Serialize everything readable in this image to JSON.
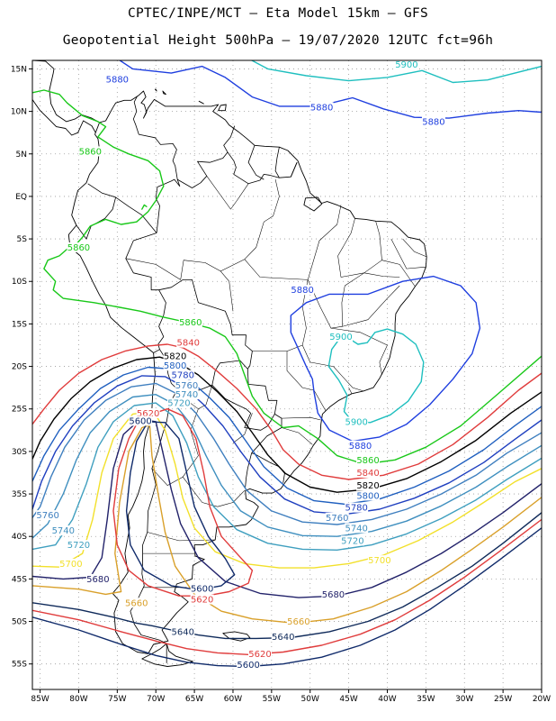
{
  "header": {
    "line1": "CPTEC/INPE/MCT –  Eta Model 15km – GFS",
    "line2": "Geopotential Height 500hPa – 19/07/2020 12UTC fct=96h"
  },
  "map": {
    "lon_range": [
      -86,
      -20
    ],
    "lat_range": [
      -58,
      16
    ],
    "lon_ticks": [
      "85W",
      "80W",
      "75W",
      "70W",
      "65W",
      "60W",
      "55W",
      "50W",
      "45W",
      "40W",
      "35W",
      "30W",
      "25W",
      "20W"
    ],
    "lat_ticks": [
      "15N",
      "10N",
      "5N",
      "EQ",
      "5S",
      "10S",
      "15S",
      "20S",
      "25S",
      "30S",
      "35S",
      "40S",
      "45S",
      "50S",
      "55S"
    ]
  },
  "contours": [
    {
      "level": "5900",
      "color": "#1fbfbf",
      "labels": [
        {
          "text": "5900",
          "lon": -46.0,
          "lat": -16.5
        },
        {
          "text": "5900",
          "lon": -44.0,
          "lat": -26.5
        },
        {
          "text": "5900",
          "lon": -37.5,
          "lat": 15.5
        }
      ]
    },
    {
      "level": "5880",
      "color": "#1f3fdf",
      "labels": [
        {
          "text": "5880",
          "lon": -75.0,
          "lat": 13.8
        },
        {
          "text": "5880",
          "lon": -48.5,
          "lat": 10.5
        },
        {
          "text": "5880",
          "lon": -34.0,
          "lat": 8.8
        },
        {
          "text": "5880",
          "lon": -51.0,
          "lat": -11.0
        },
        {
          "text": "5880",
          "lon": -43.5,
          "lat": -29.3
        }
      ]
    },
    {
      "level": "5860",
      "color": "#19c819",
      "labels": [
        {
          "text": "5860",
          "lon": -78.5,
          "lat": 5.3
        },
        {
          "text": "5860",
          "lon": -80.0,
          "lat": -6.0
        },
        {
          "text": "5860",
          "lon": -65.5,
          "lat": -14.8
        },
        {
          "text": "5860",
          "lon": -42.5,
          "lat": -31.0
        }
      ]
    },
    {
      "level": "5840",
      "color": "#e03c3c",
      "labels": [
        {
          "text": "5840",
          "lon": -65.8,
          "lat": -17.2
        },
        {
          "text": "5840",
          "lon": -42.5,
          "lat": -32.5
        }
      ]
    },
    {
      "level": "5820",
      "color": "#000000",
      "labels": [
        {
          "text": "5820",
          "lon": -67.5,
          "lat": -18.8
        },
        {
          "text": "5820",
          "lon": -42.5,
          "lat": -34.0
        }
      ]
    },
    {
      "level": "5800",
      "color": "#1f5fbf",
      "labels": [
        {
          "text": "5800",
          "lon": -67.5,
          "lat": -19.9
        },
        {
          "text": "5800",
          "lon": -42.5,
          "lat": -35.2
        }
      ]
    },
    {
      "level": "5780",
      "color": "#1f3fbf",
      "labels": [
        {
          "text": "5780",
          "lon": -66.5,
          "lat": -21.0
        },
        {
          "text": "5780",
          "lon": -44.0,
          "lat": -36.6
        }
      ]
    },
    {
      "level": "5760",
      "color": "#3f7fbf",
      "labels": [
        {
          "text": "5760",
          "lon": -66.0,
          "lat": -22.2
        },
        {
          "text": "5760",
          "lon": -46.5,
          "lat": -37.8
        },
        {
          "text": "5760",
          "lon": -84.0,
          "lat": -37.5
        }
      ]
    },
    {
      "level": "5740",
      "color": "#3f8fbf",
      "labels": [
        {
          "text": "5740",
          "lon": -66.0,
          "lat": -23.3
        },
        {
          "text": "5740",
          "lon": -44.0,
          "lat": -39.0
        },
        {
          "text": "5740",
          "lon": -82.0,
          "lat": -39.3
        }
      ]
    },
    {
      "level": "5720",
      "color": "#3f9fbf",
      "labels": [
        {
          "text": "5720",
          "lon": -67.0,
          "lat": -24.3
        },
        {
          "text": "5720",
          "lon": -44.5,
          "lat": -40.5
        },
        {
          "text": "5720",
          "lon": -80.0,
          "lat": -41.0
        }
      ]
    },
    {
      "level": "5700",
      "color": "#f2e02a",
      "labels": [
        {
          "text": "5700",
          "lon": -81.0,
          "lat": -43.2
        },
        {
          "text": "5700",
          "lon": -41.0,
          "lat": -42.8
        }
      ]
    },
    {
      "level": "5680",
      "color": "#22226a",
      "labels": [
        {
          "text": "5680",
          "lon": -77.5,
          "lat": -45.0
        },
        {
          "text": "5680",
          "lon": -47.0,
          "lat": -46.8
        }
      ]
    },
    {
      "level": "5660",
      "color": "#d9a02a",
      "labels": [
        {
          "text": "5660",
          "lon": -72.5,
          "lat": -47.8
        },
        {
          "text": "5660",
          "lon": -51.5,
          "lat": -50.0
        }
      ]
    },
    {
      "level": "5640",
      "color": "#0f2a5a",
      "labels": [
        {
          "text": "5640",
          "lon": -66.5,
          "lat": -51.2
        },
        {
          "text": "5640",
          "lon": -53.5,
          "lat": -51.8
        }
      ]
    },
    {
      "level": "5620",
      "color": "#e03c3c",
      "labels": [
        {
          "text": "5620",
          "lon": -71.0,
          "lat": -25.5
        },
        {
          "text": "5620",
          "lon": -64.0,
          "lat": -47.4
        },
        {
          "text": "5620",
          "lon": -56.5,
          "lat": -53.8
        }
      ]
    },
    {
      "level": "5600",
      "color": "#0f2a6a",
      "labels": [
        {
          "text": "5600",
          "lon": -72.0,
          "lat": -26.4
        },
        {
          "text": "5600",
          "lon": -64.0,
          "lat": -46.1
        },
        {
          "text": "5600",
          "lon": -58.0,
          "lat": -55.1
        }
      ]
    }
  ]
}
